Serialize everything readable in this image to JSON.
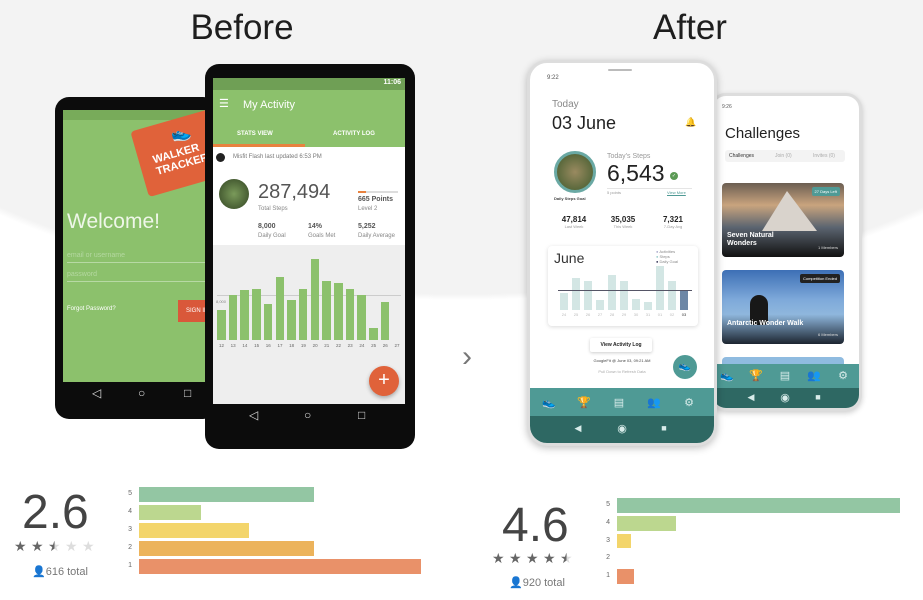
{
  "before": {
    "title": "Before",
    "login": {
      "brand_line1": "WALKER",
      "brand_line2": "TRACKER",
      "welcome": "Welcome!",
      "email_placeholder": "email or username",
      "password_placeholder": "password",
      "forgot": "Forgot Password?",
      "sign_in": "SIGN IN"
    },
    "activity": {
      "time": "11:06",
      "title": "My Activity",
      "tabs": [
        "STATS VIEW",
        "ACTIVITY LOG"
      ],
      "device_status": "Misfit Flash last updated 6:53 PM",
      "total_steps": "287,494",
      "total_steps_label": "Total Steps",
      "points": "665 Points",
      "level": "Level 2",
      "stats": [
        {
          "value": "8,000",
          "label": "Daily Goal"
        },
        {
          "value": "14%",
          "label": "Goals Met"
        },
        {
          "value": "5,252",
          "label": "Daily Average"
        }
      ],
      "goal_label": "8,000",
      "chart_data": {
        "type": "bar",
        "categories": [
          "12",
          "13",
          "14",
          "15",
          "16",
          "17",
          "18",
          "19",
          "20",
          "21",
          "22",
          "23",
          "24",
          "25",
          "26",
          "27"
        ],
        "values": [
          5300,
          8000,
          8800,
          9000,
          6300,
          11200,
          7000,
          9000,
          14300,
          10500,
          10100,
          9000,
          8000,
          2100,
          6700,
          0
        ],
        "goal": 8000,
        "color": "#8cc16c"
      }
    },
    "rating": {
      "score": "2.6",
      "stars": 2.5,
      "total": "616 total",
      "chart_data": {
        "type": "bar",
        "categories": [
          "5",
          "4",
          "3",
          "2",
          "1"
        ],
        "values": [
          0.62,
          0.22,
          0.39,
          0.62,
          1.0
        ],
        "colors": [
          "#93c6a3",
          "#bcd78f",
          "#f3d56b",
          "#ecb35b",
          "#e99169"
        ]
      }
    }
  },
  "after": {
    "title": "After",
    "home": {
      "time": "9:22",
      "today": "Today",
      "date": "03 June",
      "goal_caption": "Daily Steps Goal",
      "steps_label": "Today's Steps",
      "steps": "6,543",
      "points": "5 points",
      "view_more": "View More",
      "stats": [
        {
          "value": "47,814",
          "label": "Last Week"
        },
        {
          "value": "35,035",
          "label": "This Week"
        },
        {
          "value": "7,321",
          "label": "7-Day Avg"
        }
      ],
      "chart_title": "June",
      "legend": [
        "Activities",
        "Steps",
        "Daily Goal"
      ],
      "view_log": "View Activity Log",
      "sync": "GoogleFit @ June 03, 09:21 AM",
      "refresh": "Pull Down to Refresh Data",
      "chart_data": {
        "type": "bar",
        "categories": [
          "24",
          "25",
          "26",
          "27",
          "28",
          "29",
          "30",
          "31",
          "01",
          "02",
          "03"
        ],
        "values": [
          37,
          70,
          63,
          22,
          78,
          63,
          24,
          17,
          97,
          63,
          45
        ],
        "goal": 43,
        "color": "#d3e6e4",
        "highlight_color": "#6d87a6"
      }
    },
    "challenges": {
      "time": "9:26",
      "title": "Challenges",
      "tabs": [
        "Challenges",
        "Join (0)",
        "Invites (0)"
      ],
      "cards": [
        {
          "name": "Seven Natural Wonders",
          "badge": "27 Days Left",
          "members": "1 Members"
        },
        {
          "name": "Antarctic Wonder Walk",
          "badge": "Competition Ended",
          "members": "6 Members"
        }
      ]
    },
    "rating": {
      "score": "4.6",
      "stars": 4.5,
      "total": "920 total",
      "chart_data": {
        "type": "bar",
        "categories": [
          "5",
          "4",
          "3",
          "2",
          "1"
        ],
        "values": [
          1.0,
          0.21,
          0.05,
          0,
          0.06
        ],
        "colors": [
          "#93c6a3",
          "#bcd78f",
          "#f3d56b",
          "#ecb35b",
          "#e99169"
        ]
      }
    }
  },
  "colors": {
    "before_green": "#8cc16c",
    "before_orange": "#e0623a",
    "after_teal": "#4f9a95",
    "after_dark_teal": "#2e6863"
  }
}
